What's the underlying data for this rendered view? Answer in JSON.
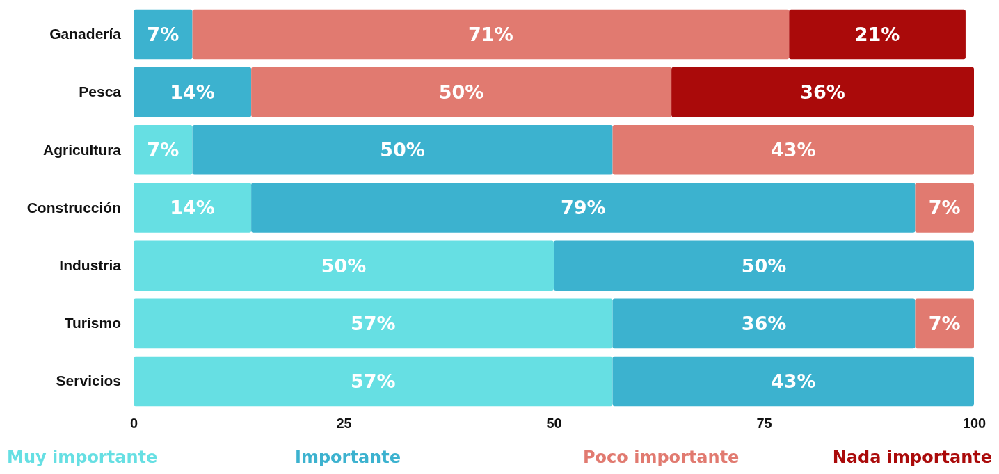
{
  "chart_data": {
    "type": "bar",
    "orientation": "horizontal",
    "stacked": true,
    "categories": [
      "Ganadería",
      "Pesca",
      "Agricultura",
      "Construcción",
      "Industria",
      "Turismo",
      "Servicios"
    ],
    "series": [
      {
        "name": "Muy importante",
        "color": "#66dfe3",
        "values": [
          0,
          0,
          7,
          14,
          50,
          57,
          57
        ],
        "value_labels": [
          null,
          null,
          "7%",
          "14%",
          "50%",
          "57%",
          "57%"
        ]
      },
      {
        "name": "Importante",
        "color": "#3cb2cf",
        "values": [
          7,
          14,
          50,
          79,
          50,
          36,
          43
        ],
        "value_labels": [
          "7%",
          "14%",
          "50%",
          "79%",
          "50%",
          "36%",
          "43%"
        ]
      },
      {
        "name": "Poco  importante",
        "color": "#e17a70",
        "values": [
          71,
          50,
          43,
          7,
          0,
          7,
          0
        ],
        "value_labels": [
          "71%",
          "50%",
          "43%",
          "7%",
          null,
          "7%",
          null
        ]
      },
      {
        "name": "Nada importante",
        "color": "#aa0a0a",
        "values": [
          21,
          36,
          0,
          0,
          0,
          0,
          0
        ],
        "value_labels": [
          "21%",
          "36%",
          null,
          null,
          null,
          null,
          null
        ]
      }
    ],
    "xlim": [
      0,
      100
    ],
    "xticks": [
      0,
      25,
      50,
      75,
      100
    ],
    "grid": false,
    "legend": "bottom"
  }
}
